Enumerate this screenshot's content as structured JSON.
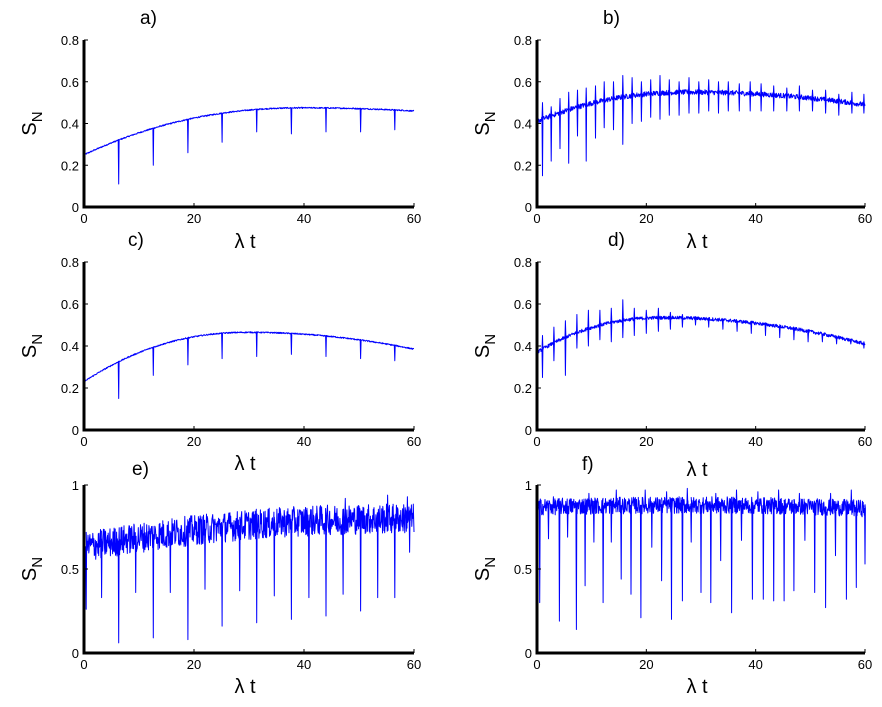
{
  "figure": {
    "color": "#0000ff"
  },
  "chart_data": [
    {
      "type": "line",
      "panel_label": "a)",
      "xlabel": "λ t",
      "ylabel": "S",
      "ylabel_sub": "N",
      "xlim": [
        0,
        60
      ],
      "ylim": [
        0,
        0.8
      ],
      "xticks": [
        "0",
        "20",
        "40",
        "60"
      ],
      "yticks": [
        "0",
        "0.2",
        "0.4",
        "0.6",
        "0.8"
      ],
      "series": [
        {
          "name": "S_N",
          "start": 0.25,
          "peak_x": 40,
          "peak": 0.475,
          "end": 0.46,
          "noise": 0.003,
          "dips": [
            [
              6.3,
              0.11
            ],
            [
              12.6,
              0.2
            ],
            [
              18.9,
              0.26
            ],
            [
              25.1,
              0.31
            ],
            [
              31.4,
              0.36
            ],
            [
              37.7,
              0.35
            ],
            [
              44,
              0.36
            ],
            [
              50.3,
              0.36
            ],
            [
              56.5,
              0.37
            ]
          ]
        }
      ]
    },
    {
      "type": "line",
      "panel_label": "b)",
      "xlabel": "λ t",
      "ylabel": "S",
      "ylabel_sub": "N",
      "xlim": [
        0,
        60
      ],
      "ylim": [
        0,
        0.8
      ],
      "xticks": [
        "0",
        "20",
        "40",
        "60"
      ],
      "yticks": [
        "0",
        "0.2",
        "0.4",
        "0.6",
        "0.8"
      ],
      "series": [
        {
          "name": "S_N",
          "start": 0.41,
          "peak_x": 28,
          "peak": 0.55,
          "end": 0.49,
          "noise": 0.012,
          "dips": [
            [
              1,
              0.15
            ],
            [
              2.6,
              0.22
            ],
            [
              4.2,
              0.28
            ],
            [
              5.8,
              0.21
            ],
            [
              7.4,
              0.34
            ],
            [
              9,
              0.22
            ],
            [
              10.7,
              0.33
            ],
            [
              12.3,
              0.38
            ],
            [
              14,
              0.37
            ],
            [
              15.7,
              0.3
            ],
            [
              17.4,
              0.4
            ],
            [
              19.1,
              0.41
            ],
            [
              20.8,
              0.43
            ],
            [
              22.5,
              0.42
            ],
            [
              24.2,
              0.44
            ],
            [
              26,
              0.44
            ],
            [
              27.8,
              0.45
            ],
            [
              29.6,
              0.45
            ],
            [
              31.4,
              0.46
            ],
            [
              33.2,
              0.45
            ],
            [
              35,
              0.46
            ],
            [
              37,
              0.46
            ],
            [
              39,
              0.46
            ],
            [
              41,
              0.46
            ],
            [
              43.3,
              0.46
            ],
            [
              45.7,
              0.46
            ],
            [
              48,
              0.46
            ],
            [
              50.4,
              0.46
            ],
            [
              52.8,
              0.45
            ],
            [
              55.2,
              0.44
            ],
            [
              57.6,
              0.45
            ],
            [
              59.8,
              0.45
            ]
          ],
          "spikes": [
            [
              1,
              0.5
            ],
            [
              2.6,
              0.48
            ],
            [
              4.2,
              0.52
            ],
            [
              5.8,
              0.55
            ],
            [
              7.4,
              0.56
            ],
            [
              9,
              0.57
            ],
            [
              10.7,
              0.58
            ],
            [
              12.3,
              0.6
            ],
            [
              14,
              0.6
            ],
            [
              15.7,
              0.63
            ],
            [
              17.4,
              0.62
            ],
            [
              19.1,
              0.6
            ],
            [
              20.8,
              0.61
            ],
            [
              22.5,
              0.63
            ],
            [
              24.2,
              0.61
            ],
            [
              26,
              0.6
            ],
            [
              27.8,
              0.62
            ],
            [
              29.6,
              0.6
            ],
            [
              31.4,
              0.61
            ],
            [
              33.2,
              0.6
            ],
            [
              35,
              0.6
            ],
            [
              37,
              0.59
            ],
            [
              39,
              0.6
            ],
            [
              41,
              0.59
            ],
            [
              43.3,
              0.58
            ],
            [
              45.7,
              0.57
            ],
            [
              48,
              0.58
            ],
            [
              50.4,
              0.56
            ],
            [
              52.8,
              0.56
            ],
            [
              55.2,
              0.54
            ],
            [
              57.6,
              0.55
            ],
            [
              59.8,
              0.54
            ]
          ]
        }
      ]
    },
    {
      "type": "line",
      "panel_label": "c)",
      "xlabel": "λ t",
      "ylabel": "S",
      "ylabel_sub": "N",
      "xlim": [
        0,
        60
      ],
      "ylim": [
        0,
        0.8
      ],
      "xticks": [
        "0",
        "20",
        "40",
        "60"
      ],
      "yticks": [
        "0",
        "0.2",
        "0.4",
        "0.6",
        "0.8"
      ],
      "series": [
        {
          "name": "S_N",
          "start": 0.23,
          "peak_x": 30,
          "peak": 0.465,
          "end": 0.385,
          "noise": 0.003,
          "dips": [
            [
              6.3,
              0.15
            ],
            [
              12.6,
              0.26
            ],
            [
              18.9,
              0.31
            ],
            [
              25.1,
              0.34
            ],
            [
              31.4,
              0.35
            ],
            [
              37.7,
              0.36
            ],
            [
              44,
              0.35
            ],
            [
              50.3,
              0.34
            ],
            [
              56.5,
              0.33
            ]
          ]
        }
      ]
    },
    {
      "type": "line",
      "panel_label": "d)",
      "xlabel": "λ t",
      "ylabel": "S",
      "ylabel_sub": "N",
      "xlim": [
        0,
        60
      ],
      "ylim": [
        0,
        0.8
      ],
      "xticks": [
        "0",
        "20",
        "40",
        "60"
      ],
      "yticks": [
        "0",
        "0.2",
        "0.4",
        "0.6",
        "0.8"
      ],
      "series": [
        {
          "name": "S_N",
          "start": 0.37,
          "peak_x": 23,
          "peak": 0.535,
          "end": 0.41,
          "noise": 0.008,
          "dips": [
            [
              1,
              0.25
            ],
            [
              3.1,
              0.33
            ],
            [
              5.2,
              0.26
            ],
            [
              7.3,
              0.39
            ],
            [
              9.4,
              0.4
            ],
            [
              11.5,
              0.43
            ],
            [
              13.6,
              0.42
            ],
            [
              15.7,
              0.44
            ],
            [
              17.8,
              0.45
            ],
            [
              20,
              0.46
            ],
            [
              22.2,
              0.47
            ],
            [
              24.4,
              0.48
            ],
            [
              26.6,
              0.49
            ],
            [
              29,
              0.5
            ],
            [
              31.4,
              0.49
            ],
            [
              34,
              0.48
            ],
            [
              36.6,
              0.47
            ],
            [
              39.2,
              0.46
            ],
            [
              41.8,
              0.45
            ],
            [
              44.4,
              0.44
            ],
            [
              47,
              0.43
            ],
            [
              49.6,
              0.42
            ],
            [
              52.2,
              0.42
            ],
            [
              54.8,
              0.41
            ],
            [
              57.4,
              0.41
            ],
            [
              59.8,
              0.39
            ]
          ],
          "spikes": [
            [
              1,
              0.45
            ],
            [
              3.1,
              0.49
            ],
            [
              5.2,
              0.52
            ],
            [
              7.3,
              0.55
            ],
            [
              9.4,
              0.57
            ],
            [
              11.5,
              0.57
            ],
            [
              13.6,
              0.58
            ],
            [
              15.7,
              0.62
            ],
            [
              17.8,
              0.58
            ],
            [
              20,
              0.57
            ],
            [
              22.2,
              0.58
            ],
            [
              24.4,
              0.56
            ],
            [
              26.6,
              0.55
            ],
            [
              29,
              0.54
            ],
            [
              31.4,
              0.53
            ],
            [
              34,
              0.52
            ],
            [
              36.6,
              0.51
            ],
            [
              39.2,
              0.5
            ],
            [
              41.8,
              0.49
            ],
            [
              44.4,
              0.48
            ],
            [
              47,
              0.47
            ],
            [
              49.6,
              0.46
            ],
            [
              52.2,
              0.45
            ],
            [
              54.8,
              0.44
            ],
            [
              57.4,
              0.43
            ],
            [
              59.8,
              0.42
            ]
          ]
        }
      ]
    },
    {
      "type": "line",
      "panel_label": "e)",
      "xlabel": "λ t",
      "ylabel": "S",
      "ylabel_sub": "N",
      "xlim": [
        0,
        60
      ],
      "ylim": [
        0,
        1
      ],
      "xticks": [
        "0",
        "20",
        "40",
        "60"
      ],
      "yticks": [
        "0",
        "0.5",
        "1"
      ],
      "series": [
        {
          "name": "S_N",
          "start": 0.63,
          "peak_x": 60,
          "peak": 0.8,
          "end": 0.8,
          "noise": 0.09,
          "dips": [
            [
              0.4,
              0.26
            ],
            [
              3.2,
              0.33
            ],
            [
              6.3,
              0.06
            ],
            [
              9.4,
              0.36
            ],
            [
              12.6,
              0.09
            ],
            [
              15.7,
              0.36
            ],
            [
              18.9,
              0.08
            ],
            [
              22,
              0.38
            ],
            [
              25.1,
              0.16
            ],
            [
              28.3,
              0.37
            ],
            [
              31.4,
              0.18
            ],
            [
              34.6,
              0.34
            ],
            [
              37.7,
              0.2
            ],
            [
              40.9,
              0.33
            ],
            [
              44,
              0.22
            ],
            [
              47.1,
              0.35
            ],
            [
              50.3,
              0.25
            ],
            [
              53.4,
              0.33
            ],
            [
              56.5,
              0.33
            ],
            [
              59.2,
              0.6
            ]
          ],
          "spikes": [
            [
              47.5,
              0.92
            ],
            [
              55.2,
              0.94
            ],
            [
              58.8,
              0.93
            ]
          ]
        }
      ]
    },
    {
      "type": "line",
      "panel_label": "f)",
      "xlabel": "λ t",
      "ylabel": "S",
      "ylabel_sub": "N",
      "xlim": [
        0,
        60
      ],
      "ylim": [
        0,
        1
      ],
      "xticks": [
        "0",
        "20",
        "40",
        "60"
      ],
      "yticks": [
        "0",
        "0.5",
        "1"
      ],
      "series": [
        {
          "name": "S_N",
          "start": 0.87,
          "peak_x": 30,
          "peak": 0.88,
          "end": 0.86,
          "noise": 0.05,
          "dips": [
            [
              0.5,
              0.3
            ],
            [
              2.1,
              0.68
            ],
            [
              4.1,
              0.19
            ],
            [
              5.6,
              0.69
            ],
            [
              7.2,
              0.14
            ],
            [
              8.8,
              0.4
            ],
            [
              10.4,
              0.66
            ],
            [
              12.1,
              0.3
            ],
            [
              13.6,
              0.66
            ],
            [
              15.4,
              0.44
            ],
            [
              17.2,
              0.35
            ],
            [
              19,
              0.21
            ],
            [
              21,
              0.63
            ],
            [
              22.8,
              0.43
            ],
            [
              24.6,
              0.2
            ],
            [
              26.6,
              0.31
            ],
            [
              28.2,
              0.66
            ],
            [
              30,
              0.36
            ],
            [
              31.8,
              0.3
            ],
            [
              33.6,
              0.55
            ],
            [
              35.6,
              0.24
            ],
            [
              37.4,
              0.67
            ],
            [
              39.4,
              0.32
            ],
            [
              41.4,
              0.32
            ],
            [
              43.3,
              0.31
            ],
            [
              45.2,
              0.31
            ],
            [
              47,
              0.37
            ],
            [
              49,
              0.67
            ],
            [
              50.8,
              0.36
            ],
            [
              52.8,
              0.27
            ],
            [
              54.6,
              0.58
            ],
            [
              56.6,
              0.32
            ],
            [
              58.4,
              0.39
            ],
            [
              60,
              0.53
            ]
          ],
          "spikes": [
            [
              3,
              0.93
            ],
            [
              9.5,
              0.95
            ],
            [
              14.5,
              0.97
            ],
            [
              19.8,
              0.97
            ],
            [
              23.7,
              0.96
            ],
            [
              27.5,
              0.98
            ],
            [
              32.7,
              0.95
            ],
            [
              36.5,
              0.97
            ],
            [
              40.4,
              0.96
            ],
            [
              44.2,
              0.97
            ],
            [
              48,
              0.95
            ],
            [
              53.7,
              0.95
            ],
            [
              57.5,
              0.97
            ]
          ]
        }
      ]
    }
  ]
}
